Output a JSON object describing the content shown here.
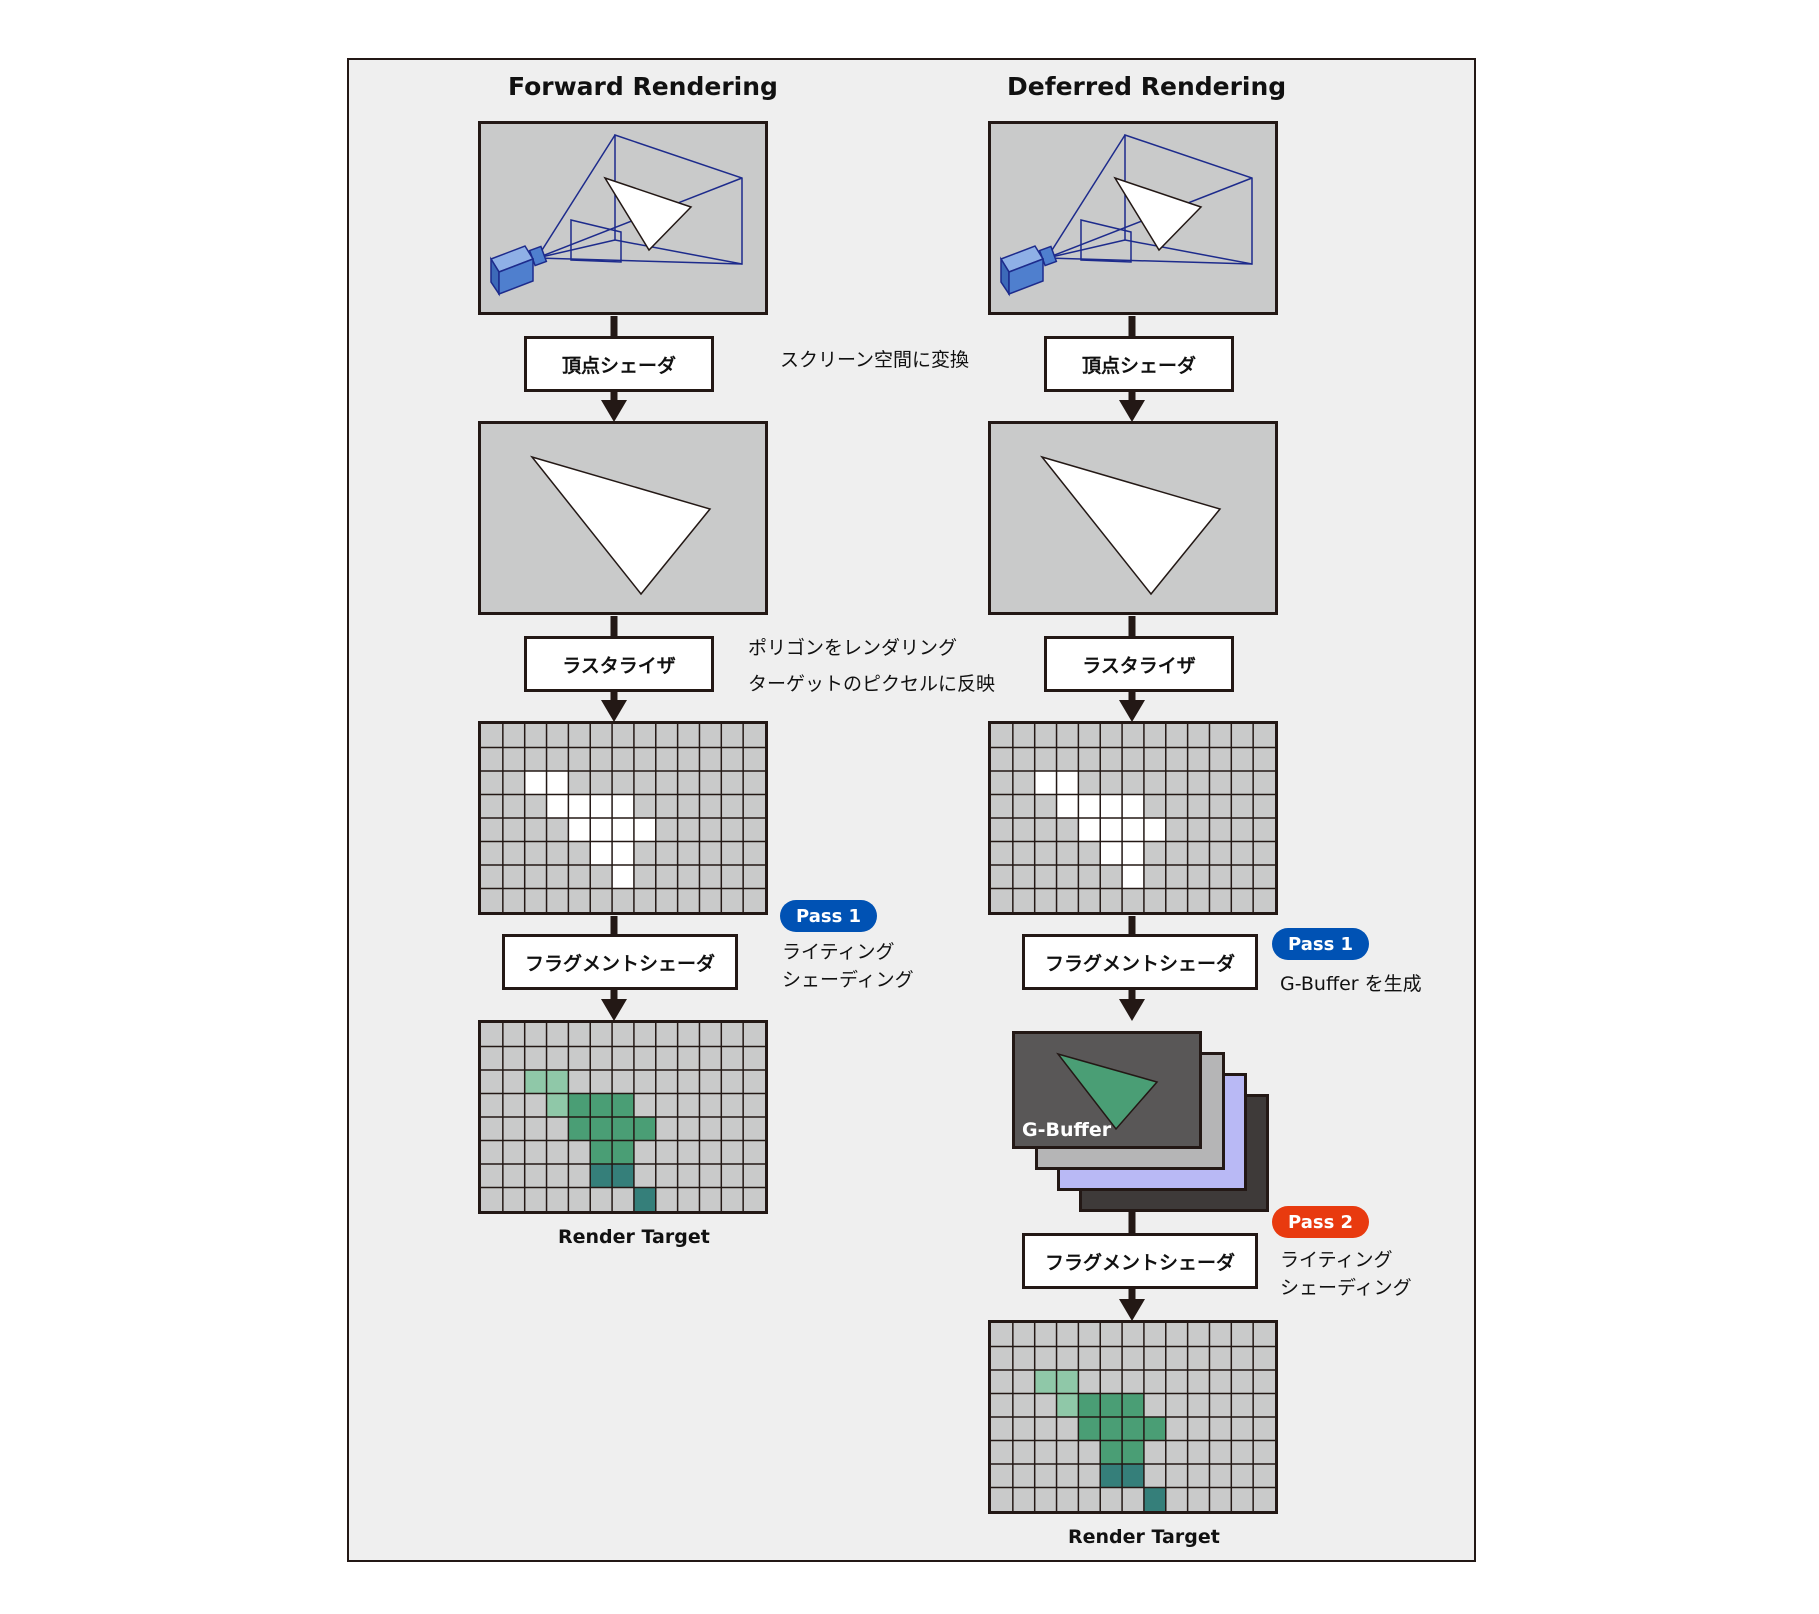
{
  "columns": {
    "forward": {
      "title": "Forward Rendering",
      "vertex_shader": "頂点シェーダ",
      "rasterizer": "ラスタライザ",
      "fragment_shader": "フラグメントシェーダ",
      "render_target": "Render Target"
    },
    "deferred": {
      "title": "Deferred Rendering",
      "vertex_shader": "頂点シェーダ",
      "rasterizer": "ラスタライザ",
      "fragment_shader_1": "フラグメントシェーダ",
      "gbuffer": "G-Buffer",
      "fragment_shader_2": "フラグメントシェーダ",
      "render_target": "Render Target"
    }
  },
  "notes": {
    "vertex": "スクリーン空間に変換",
    "raster_line1": "ポリゴンをレンダリング",
    "raster_line2": "ターゲットのピクセルに反映",
    "forward_pass1_line1": "ライティング",
    "forward_pass1_line2": "シェーディング",
    "deferred_pass1": "G-Buffer を生成",
    "deferred_pass2_line1": "ライティング",
    "deferred_pass2_line2": "シェーディング"
  },
  "badges": {
    "forward_pass1": "Pass 1",
    "deferred_pass1": "Pass 1",
    "deferred_pass2": "Pass 2"
  },
  "colors": {
    "pass1": "#0052b4",
    "pass2": "#e83a0f",
    "panel_gray": "#c9caca",
    "frustum_blue": "#1d2b8c",
    "camera_blue": "#4f7fce",
    "gbuffer_dark": "#595757",
    "gbuffer_gray": "#b5b5b6",
    "gbuffer_lavender": "#b9b9f5",
    "gbuffer_black": "#3e3a39",
    "shade_light": "#8fc8a8",
    "shade_mid": "#4a9e75",
    "shade_dark": "#357f7a"
  },
  "raster_grid": {
    "cols": 13,
    "rows": 8,
    "cells": [
      [
        2,
        2
      ],
      [
        3,
        2
      ],
      [
        3,
        3
      ],
      [
        4,
        3
      ],
      [
        5,
        3
      ],
      [
        6,
        3
      ],
      [
        4,
        4
      ],
      [
        5,
        4
      ],
      [
        6,
        4
      ],
      [
        7,
        4
      ],
      [
        5,
        5
      ],
      [
        6,
        5
      ],
      [
        6,
        6
      ]
    ]
  },
  "shaded_grid": {
    "light": [
      [
        2,
        2
      ],
      [
        3,
        2
      ],
      [
        3,
        3
      ]
    ],
    "mid": [
      [
        4,
        3
      ],
      [
        5,
        3
      ],
      [
        6,
        3
      ],
      [
        4,
        4
      ],
      [
        5,
        4
      ],
      [
        6,
        4
      ],
      [
        7,
        4
      ],
      [
        5,
        5
      ],
      [
        6,
        5
      ]
    ],
    "dark": [
      [
        6,
        6
      ]
    ],
    "deep": [
      [
        5,
        6
      ],
      [
        7,
        7
      ]
    ]
  }
}
